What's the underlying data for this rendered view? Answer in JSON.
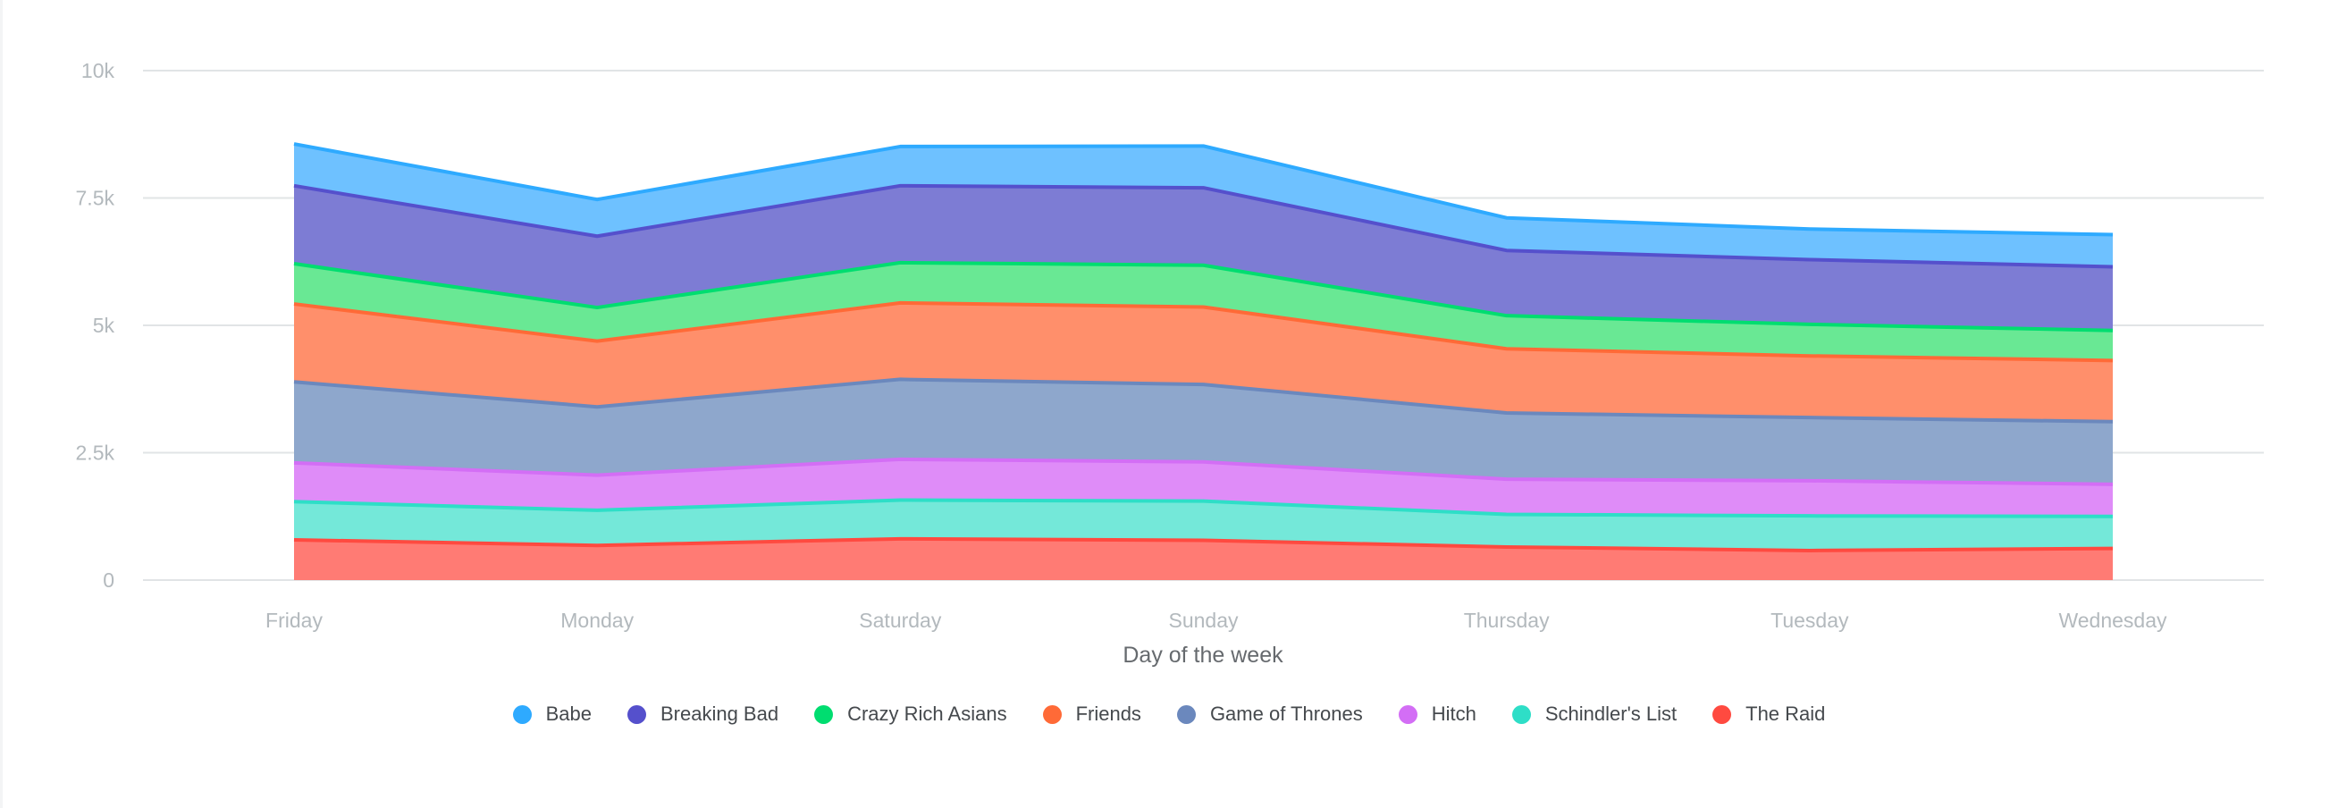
{
  "chart_data": {
    "type": "area",
    "stacked": true,
    "title": "",
    "xlabel": "Day of the week",
    "ylabel": "",
    "ylim": [
      0,
      10000
    ],
    "y_ticks": [
      0,
      2500,
      5000,
      7500,
      10000
    ],
    "y_tick_labels": [
      "0",
      "2.5k",
      "5k",
      "7.5k",
      "10k"
    ],
    "grid": true,
    "legend_position": "bottom",
    "categories": [
      "Friday",
      "Monday",
      "Saturday",
      "Sunday",
      "Thursday",
      "Tuesday",
      "Wednesday"
    ],
    "series": [
      {
        "name": "The Raid",
        "stroke": "#ff4a40",
        "fill": "#ff7b74",
        "values": [
          790,
          680,
          810,
          780,
          650,
          580,
          620
        ]
      },
      {
        "name": "Schindler's List",
        "stroke": "#2edec7",
        "fill": "#74e8d9",
        "values": [
          750,
          690,
          760,
          770,
          640,
          680,
          630
        ]
      },
      {
        "name": "Hitch",
        "stroke": "#d36ef5",
        "fill": "#df8cf8",
        "values": [
          760,
          690,
          800,
          770,
          690,
          690,
          630
        ]
      },
      {
        "name": "Game of Thrones",
        "stroke": "#6b88bd",
        "fill": "#8ea7cc",
        "values": [
          1590,
          1340,
          1570,
          1520,
          1300,
          1240,
          1230
        ]
      },
      {
        "name": "Friends",
        "stroke": "#ff6a37",
        "fill": "#ff8f6b",
        "values": [
          1530,
          1290,
          1500,
          1520,
          1260,
          1210,
          1200
        ]
      },
      {
        "name": "Crazy Rich Asians",
        "stroke": "#00dd70",
        "fill": "#69e894",
        "values": [
          790,
          660,
          790,
          820,
          650,
          620,
          590
        ]
      },
      {
        "name": "Breaking Bad",
        "stroke": "#5550cc",
        "fill": "#7d7cd4",
        "values": [
          1530,
          1400,
          1510,
          1520,
          1280,
          1270,
          1250
        ]
      },
      {
        "name": "Babe",
        "stroke": "#2eaaff",
        "fill": "#6ec1ff",
        "values": [
          820,
          720,
          770,
          820,
          640,
          600,
          630
        ]
      }
    ]
  },
  "legend": [
    {
      "label": "Babe",
      "color": "#2eaaff"
    },
    {
      "label": "Breaking Bad",
      "color": "#5550cc"
    },
    {
      "label": "Crazy Rich Asians",
      "color": "#00dd70"
    },
    {
      "label": "Friends",
      "color": "#ff6a37"
    },
    {
      "label": "Game of Thrones",
      "color": "#6b88bd"
    },
    {
      "label": "Hitch",
      "color": "#d36ef5"
    },
    {
      "label": "Schindler's List",
      "color": "#2edec7"
    },
    {
      "label": "The Raid",
      "color": "#ff4a40"
    }
  ]
}
